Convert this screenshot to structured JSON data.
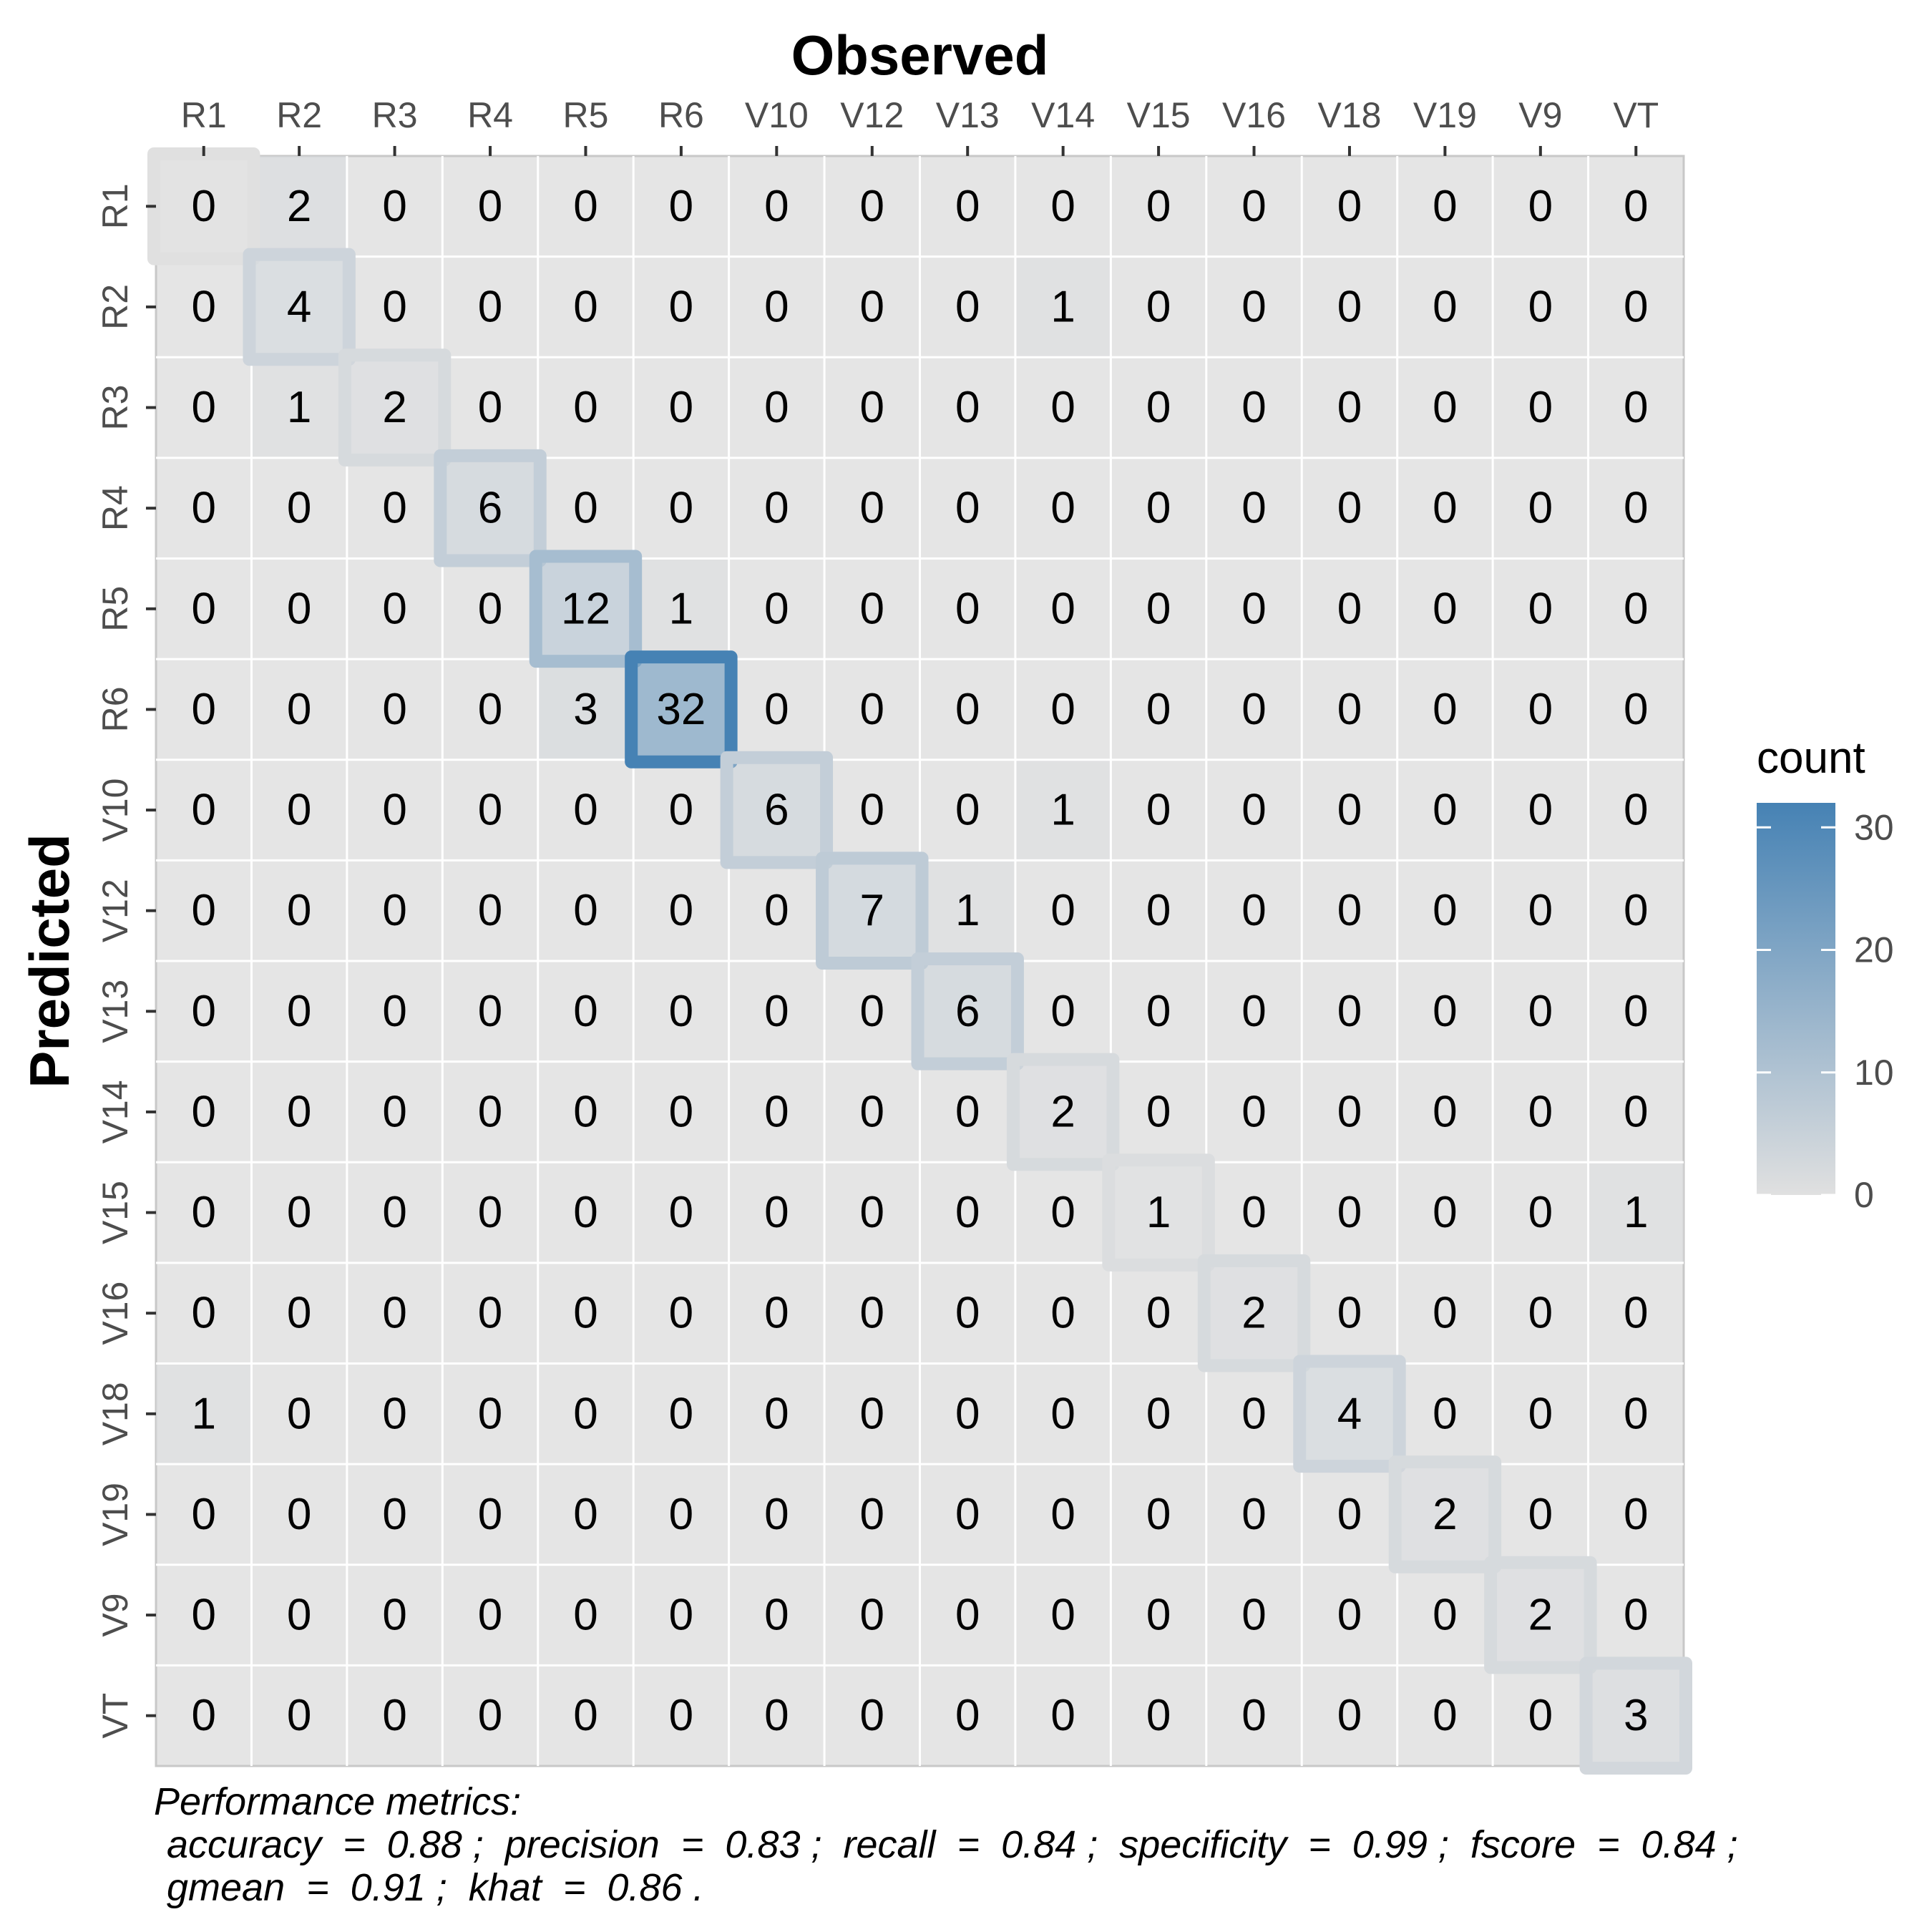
{
  "chart_data": {
    "type": "heatmap",
    "title": "Observed",
    "xlabel": "Observed",
    "ylabel": "Predicted",
    "x_categories": [
      "R1",
      "R2",
      "R3",
      "R4",
      "R5",
      "R6",
      "V10",
      "V12",
      "V13",
      "V14",
      "V15",
      "V16",
      "V18",
      "V19",
      "V9",
      "VT"
    ],
    "y_categories": [
      "R1",
      "R2",
      "R3",
      "R4",
      "R5",
      "R6",
      "V10",
      "V12",
      "V13",
      "V14",
      "V15",
      "V16",
      "V18",
      "V19",
      "V9",
      "VT"
    ],
    "values": [
      [
        0,
        2,
        0,
        0,
        0,
        0,
        0,
        0,
        0,
        0,
        0,
        0,
        0,
        0,
        0,
        0
      ],
      [
        0,
        4,
        0,
        0,
        0,
        0,
        0,
        0,
        0,
        1,
        0,
        0,
        0,
        0,
        0,
        0
      ],
      [
        0,
        1,
        2,
        0,
        0,
        0,
        0,
        0,
        0,
        0,
        0,
        0,
        0,
        0,
        0,
        0
      ],
      [
        0,
        0,
        0,
        6,
        0,
        0,
        0,
        0,
        0,
        0,
        0,
        0,
        0,
        0,
        0,
        0
      ],
      [
        0,
        0,
        0,
        0,
        12,
        1,
        0,
        0,
        0,
        0,
        0,
        0,
        0,
        0,
        0,
        0
      ],
      [
        0,
        0,
        0,
        0,
        3,
        32,
        0,
        0,
        0,
        0,
        0,
        0,
        0,
        0,
        0,
        0
      ],
      [
        0,
        0,
        0,
        0,
        0,
        0,
        6,
        0,
        0,
        1,
        0,
        0,
        0,
        0,
        0,
        0
      ],
      [
        0,
        0,
        0,
        0,
        0,
        0,
        0,
        7,
        1,
        0,
        0,
        0,
        0,
        0,
        0,
        0
      ],
      [
        0,
        0,
        0,
        0,
        0,
        0,
        0,
        0,
        6,
        0,
        0,
        0,
        0,
        0,
        0,
        0
      ],
      [
        0,
        0,
        0,
        0,
        0,
        0,
        0,
        0,
        0,
        2,
        0,
        0,
        0,
        0,
        0,
        0
      ],
      [
        0,
        0,
        0,
        0,
        0,
        0,
        0,
        0,
        0,
        0,
        1,
        0,
        0,
        0,
        0,
        1
      ],
      [
        0,
        0,
        0,
        0,
        0,
        0,
        0,
        0,
        0,
        0,
        0,
        2,
        0,
        0,
        0,
        0
      ],
      [
        1,
        0,
        0,
        0,
        0,
        0,
        0,
        0,
        0,
        0,
        0,
        0,
        4,
        0,
        0,
        0
      ],
      [
        0,
        0,
        0,
        0,
        0,
        0,
        0,
        0,
        0,
        0,
        0,
        0,
        0,
        2,
        0,
        0
      ],
      [
        0,
        0,
        0,
        0,
        0,
        0,
        0,
        0,
        0,
        0,
        0,
        0,
        0,
        0,
        2,
        0
      ],
      [
        0,
        0,
        0,
        0,
        0,
        0,
        0,
        0,
        0,
        0,
        0,
        0,
        0,
        0,
        0,
        3
      ]
    ],
    "legend": {
      "title": "count",
      "position": "right",
      "ticks": [
        0,
        10,
        20,
        30
      ],
      "range": [
        0,
        32
      ],
      "color_low": "#e0e0e0",
      "color_high": "#4682b4"
    },
    "diagonal_highlight": true,
    "panel_background": "#e5e5e5",
    "grid_color": "#ffffff"
  },
  "metrics": {
    "heading": "Performance metrics:",
    "line1": "accuracy  =  0.88 ;  precision  =  0.83 ;  recall  =  0.84 ;  specificity  =  0.99 ;  fscore  =  0.84 ;",
    "line2": "gmean  =  0.91 ;  khat  =  0.86 ."
  }
}
